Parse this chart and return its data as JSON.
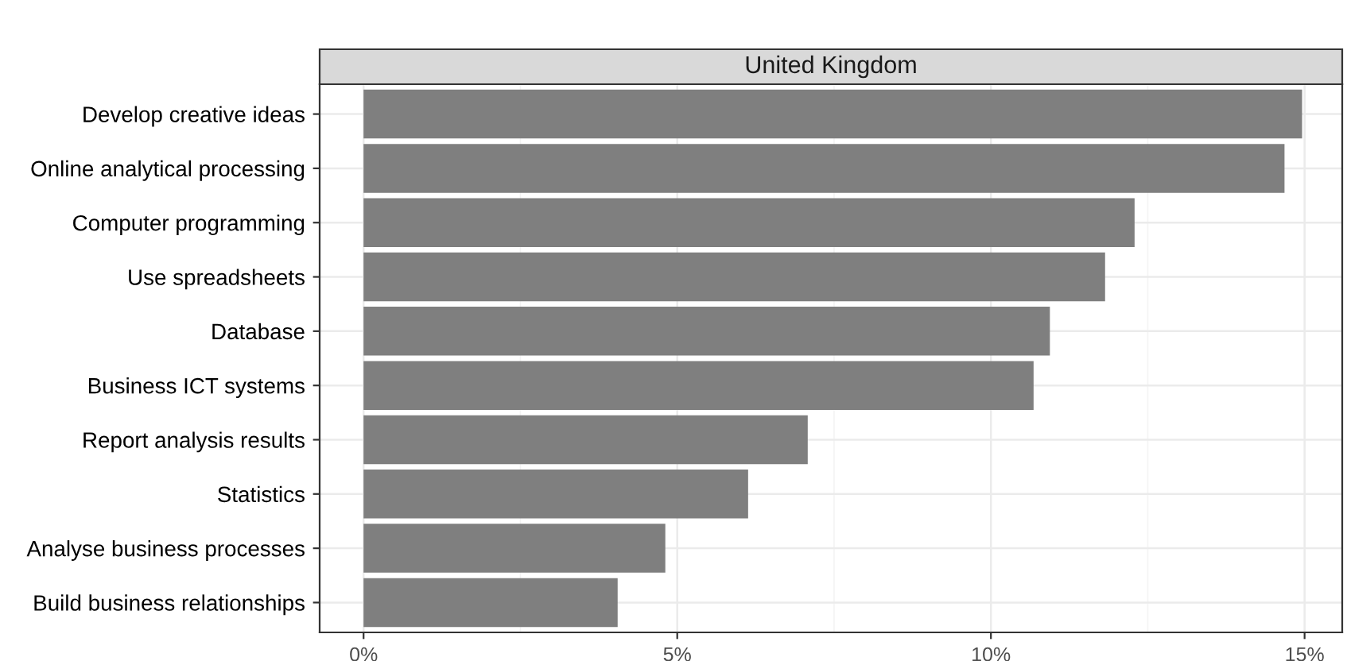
{
  "chart_data": {
    "type": "bar",
    "orientation": "horizontal",
    "title": "United Kingdom",
    "categories": [
      "Develop creative ideas",
      "Online analytical processing",
      "Computer programming",
      "Use spreadsheets",
      "Database",
      "Business ICT systems",
      "Report analysis results",
      "Statistics",
      "Analyse business processes",
      "Build business relationships"
    ],
    "values": [
      14.96,
      14.68,
      12.29,
      11.82,
      10.94,
      10.68,
      7.08,
      6.13,
      4.81,
      4.05
    ],
    "color": "#7f7f7f",
    "xlim": [
      -0.7,
      15.6
    ],
    "xticks": [
      {
        "value": 0,
        "label": "0%"
      },
      {
        "value": 2.5,
        "label": null
      },
      {
        "value": 5,
        "label": "5%"
      },
      {
        "value": 7.5,
        "label": null
      },
      {
        "value": 10,
        "label": "10%"
      },
      {
        "value": 12.5,
        "label": null
      },
      {
        "value": 15,
        "label": "15%"
      }
    ],
    "grid": true
  }
}
